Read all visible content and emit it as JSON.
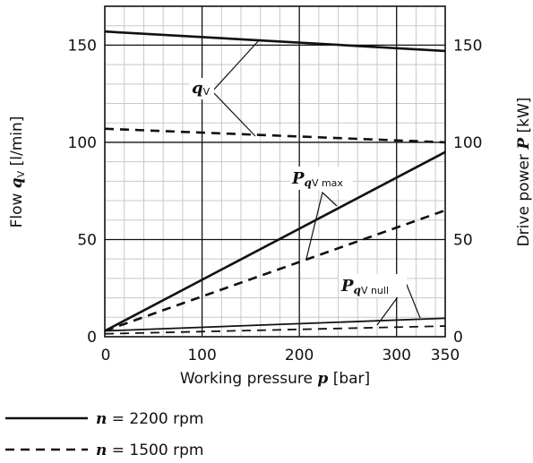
{
  "chart_data": {
    "type": "line",
    "xlabel_text": "Working pressure",
    "xlabel_sym": "p",
    "xlabel_unit": "[bar]",
    "ylabel_left_text": "Flow",
    "ylabel_left_sym": "q",
    "ylabel_left_sub": "V",
    "ylabel_left_unit": "[l/min]",
    "ylabel_right_text": "Drive power",
    "ylabel_right_sym": "P",
    "ylabel_right_unit": "[kW]",
    "xlim": [
      0,
      350
    ],
    "ylim": [
      0,
      170
    ],
    "y_right_lim": [
      0,
      170
    ],
    "x_ticks": [
      "0",
      "100",
      "200",
      "300",
      "350"
    ],
    "x_tick_values": [
      0,
      100,
      200,
      300,
      350
    ],
    "y_ticks": [
      "0",
      "50",
      "100",
      "150"
    ],
    "y_tick_values": [
      0,
      50,
      100,
      150
    ],
    "y_right_ticks": [
      "0",
      "50",
      "100",
      "150"
    ],
    "grid": true,
    "series": [
      {
        "label": "qV",
        "rpm": 2200,
        "style": "solid",
        "width": 2.6,
        "x": [
          0,
          350
        ],
        "y": [
          157,
          147
        ]
      },
      {
        "label": "qV",
        "rpm": 1500,
        "style": "dashed",
        "width": 2.6,
        "x": [
          0,
          350
        ],
        "y": [
          107,
          100
        ]
      },
      {
        "label": "PqV max",
        "rpm": 2200,
        "style": "solid",
        "width": 2.6,
        "x": [
          0,
          350
        ],
        "y": [
          3,
          95
        ]
      },
      {
        "label": "PqV max",
        "rpm": 1500,
        "style": "dashed",
        "width": 2.6,
        "x": [
          0,
          350
        ],
        "y": [
          3,
          65
        ]
      },
      {
        "label": "PqV null",
        "rpm": 2200,
        "style": "solid",
        "width": 1.8,
        "x": [
          0,
          350
        ],
        "y": [
          3,
          9.5
        ]
      },
      {
        "label": "PqV null",
        "rpm": 1500,
        "style": "dashed",
        "width": 1.8,
        "x": [
          0,
          350
        ],
        "y": [
          1.5,
          5.5
        ]
      }
    ],
    "annotations": {
      "qv": {
        "sym": "q",
        "sub": "V"
      },
      "pmax": {
        "sym": "P",
        "sub1": "q",
        "sub2": "V max"
      },
      "pnull": {
        "sym": "P",
        "sub1": "q",
        "sub2": "V null"
      }
    },
    "legend": [
      {
        "style": "solid",
        "sym": "n",
        "text": "= 2200 rpm"
      },
      {
        "style": "dashed",
        "sym": "n",
        "text": "= 1500 rpm"
      }
    ]
  }
}
